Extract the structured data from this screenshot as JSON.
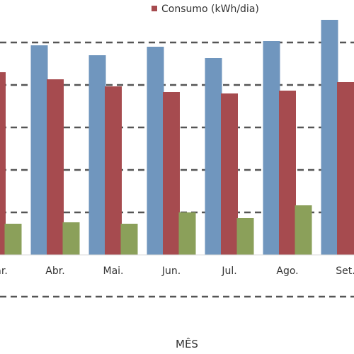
{
  "chart_data": {
    "type": "bar",
    "xlabel": "MÊS",
    "categories": [
      "Mar.",
      "Abr.",
      "Mai.",
      "Jun.",
      "Jul.",
      "Ago.",
      "Set."
    ],
    "series": [
      {
        "name": "",
        "color": "#7096BE",
        "values": [
          null,
          14.8,
          14.1,
          14.7,
          13.9,
          15.1,
          16.6
        ]
      },
      {
        "name": "Consumo (kWh/dia)",
        "color": "#A64B4F",
        "values": [
          12.9,
          12.4,
          11.9,
          11.5,
          11.4,
          11.6,
          12.2
        ]
      },
      {
        "name": "",
        "color": "#8BA05A",
        "values": [
          2.2,
          2.3,
          2.2,
          3.0,
          2.6,
          3.5,
          null
        ]
      }
    ],
    "ylim": [
      0,
      18
    ],
    "gridlines": [
      0,
      3,
      6,
      9,
      12,
      15
    ],
    "grid": true,
    "legend_position": "top"
  }
}
